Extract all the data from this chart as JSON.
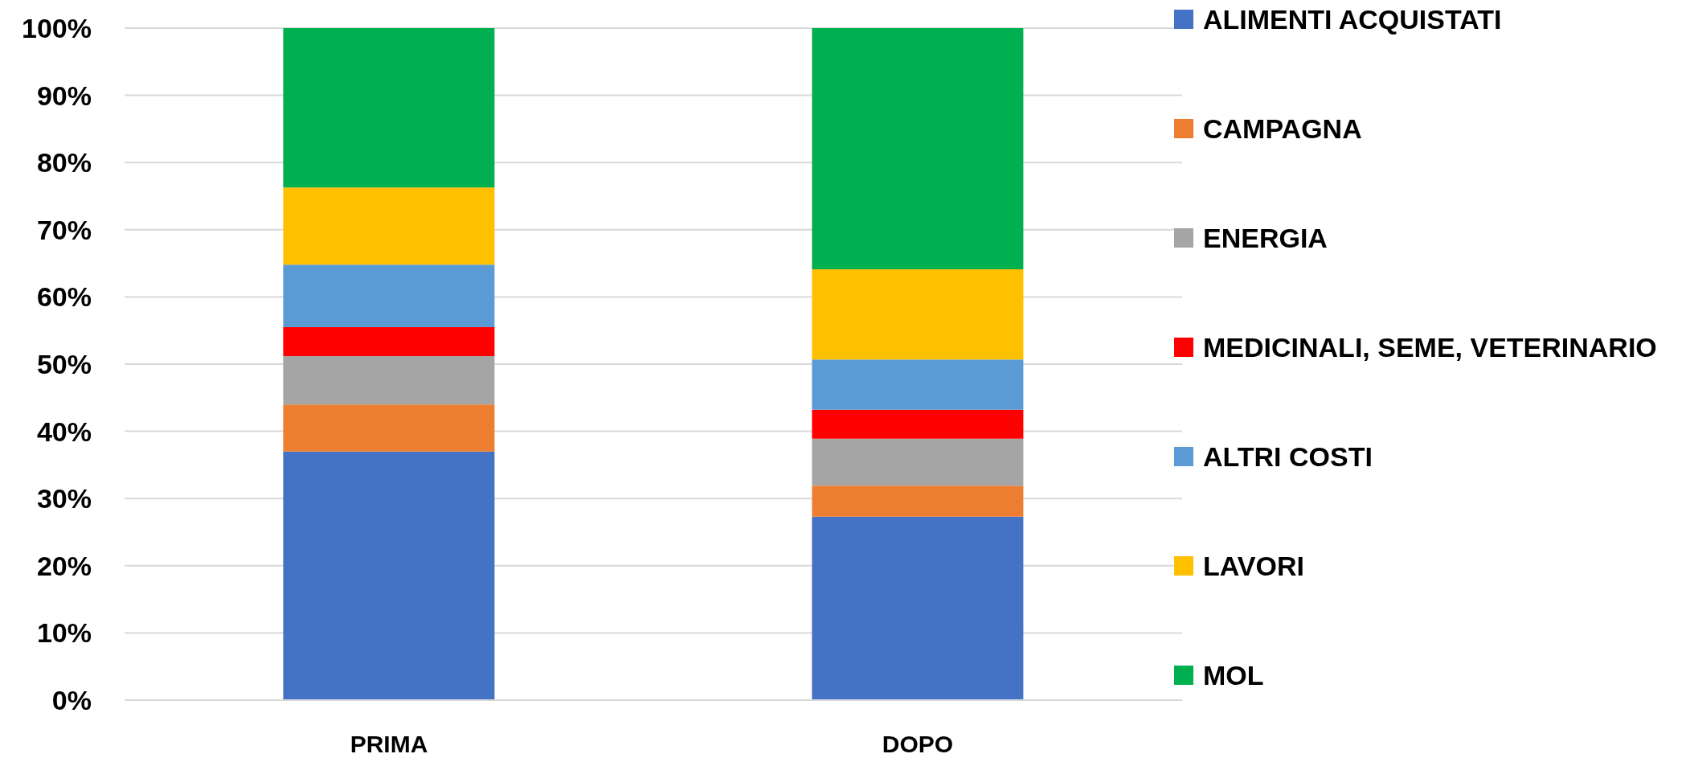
{
  "chart_data": {
    "type": "bar",
    "stacked": true,
    "categories": [
      "PRIMA",
      "DOPO"
    ],
    "series": [
      {
        "name": "ALIMENTI ACQUISTATI",
        "color": "#4472c4",
        "values": [
          37.0,
          27.3
        ]
      },
      {
        "name": "CAMPAGNA",
        "color": "#ed7d31",
        "values": [
          7.0,
          4.6
        ]
      },
      {
        "name": "ENERGIA",
        "color": "#a5a5a5",
        "values": [
          7.2,
          7.0
        ]
      },
      {
        "name": "MEDICINALI, SEME, VETERINARIO",
        "color": "#ff0000",
        "values": [
          4.3,
          4.3
        ]
      },
      {
        "name": "ALTRI COSTI",
        "color": "#5b9bd5",
        "values": [
          9.3,
          7.5
        ]
      },
      {
        "name": "LAVORI",
        "color": "#ffc000",
        "values": [
          11.5,
          13.4
        ]
      },
      {
        "name": "MOL",
        "color": "#00b050",
        "values": [
          23.7,
          35.9
        ]
      }
    ],
    "ylim": [
      0,
      100
    ],
    "yticks": [
      {
        "value": 0,
        "label": "0%"
      },
      {
        "value": 10,
        "label": "10%"
      },
      {
        "value": 20,
        "label": "20%"
      },
      {
        "value": 30,
        "label": "30%"
      },
      {
        "value": 40,
        "label": "40%"
      },
      {
        "value": 50,
        "label": "50%"
      },
      {
        "value": 60,
        "label": "60%"
      },
      {
        "value": 70,
        "label": "70%"
      },
      {
        "value": 80,
        "label": "80%"
      },
      {
        "value": 90,
        "label": "90%"
      },
      {
        "value": 100,
        "label": "100%"
      }
    ],
    "grid": "y",
    "legend": "right"
  }
}
